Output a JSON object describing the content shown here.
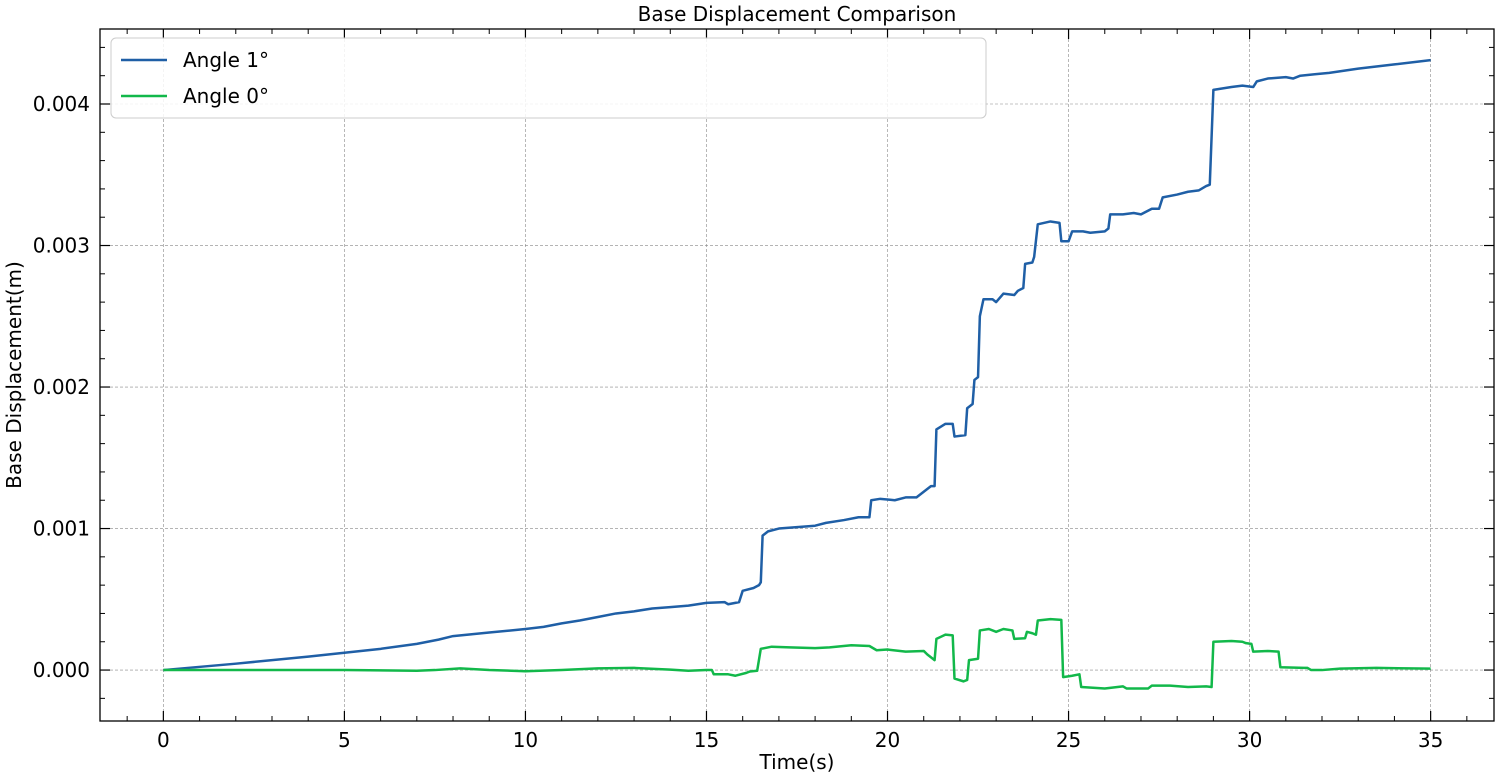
{
  "chart_data": {
    "type": "line",
    "title": "Base Displacement Comparison",
    "xlabel": "Time(s)",
    "ylabel": "Base Displacement(m)",
    "xlim": [
      -1.75,
      36.75
    ],
    "ylim": [
      -0.00036,
      0.00453
    ],
    "xticks": [
      0,
      5,
      10,
      15,
      20,
      25,
      30,
      35
    ],
    "xtick_labels": [
      "0",
      "5",
      "10",
      "15",
      "20",
      "25",
      "30",
      "35"
    ],
    "yticks": [
      0.0,
      0.001,
      0.002,
      0.003,
      0.004
    ],
    "ytick_labels": [
      "0.000",
      "0.001",
      "0.002",
      "0.003",
      "0.004"
    ],
    "grid": true,
    "legend_position": "top-left",
    "series": [
      {
        "name": "Angle 1°",
        "color": "#1f5fa6",
        "points": [
          [
            0,
            0.0
          ],
          [
            2,
            4.5e-05
          ],
          [
            4,
            9.5e-05
          ],
          [
            6,
            0.00015
          ],
          [
            7,
            0.000185
          ],
          [
            7.6,
            0.000215
          ],
          [
            8,
            0.00024
          ],
          [
            9,
            0.000265
          ],
          [
            10,
            0.00029
          ],
          [
            10.5,
            0.000305
          ],
          [
            11,
            0.00033
          ],
          [
            11.5,
            0.00035
          ],
          [
            12,
            0.000375
          ],
          [
            12.5,
            0.0004
          ],
          [
            13,
            0.000415
          ],
          [
            13.5,
            0.000435
          ],
          [
            14,
            0.000445
          ],
          [
            14.5,
            0.000455
          ],
          [
            15,
            0.000475
          ],
          [
            15.5,
            0.00048
          ],
          [
            15.6,
            0.000465
          ],
          [
            15.9,
            0.00048
          ],
          [
            16.0,
            0.00056
          ],
          [
            16.3,
            0.00058
          ],
          [
            16.45,
            0.0006
          ],
          [
            16.5,
            0.00062
          ],
          [
            16.55,
            0.00095
          ],
          [
            16.7,
            0.00098
          ],
          [
            17,
            0.001
          ],
          [
            17.5,
            0.00101
          ],
          [
            18,
            0.00102
          ],
          [
            18.3,
            0.00104
          ],
          [
            18.8,
            0.00106
          ],
          [
            19.2,
            0.00108
          ],
          [
            19.5,
            0.00108
          ],
          [
            19.55,
            0.0012
          ],
          [
            19.8,
            0.00121
          ],
          [
            20.2,
            0.0012
          ],
          [
            20.5,
            0.00122
          ],
          [
            20.8,
            0.00122
          ],
          [
            21.0,
            0.00126
          ],
          [
            21.2,
            0.0013
          ],
          [
            21.3,
            0.0013
          ],
          [
            21.35,
            0.0017
          ],
          [
            21.6,
            0.00174
          ],
          [
            21.8,
            0.00174
          ],
          [
            21.85,
            0.00165
          ],
          [
            22.15,
            0.00166
          ],
          [
            22.2,
            0.00185
          ],
          [
            22.35,
            0.00188
          ],
          [
            22.4,
            0.00205
          ],
          [
            22.5,
            0.00207
          ],
          [
            22.55,
            0.0025
          ],
          [
            22.65,
            0.00262
          ],
          [
            22.9,
            0.00262
          ],
          [
            23.0,
            0.0026
          ],
          [
            23.2,
            0.00266
          ],
          [
            23.5,
            0.00265
          ],
          [
            23.6,
            0.00268
          ],
          [
            23.75,
            0.0027
          ],
          [
            23.8,
            0.00287
          ],
          [
            24.0,
            0.00288
          ],
          [
            24.05,
            0.00292
          ],
          [
            24.15,
            0.00315
          ],
          [
            24.5,
            0.00317
          ],
          [
            24.75,
            0.00316
          ],
          [
            24.8,
            0.00303
          ],
          [
            25.0,
            0.00303
          ],
          [
            25.1,
            0.0031
          ],
          [
            25.4,
            0.0031
          ],
          [
            25.6,
            0.00309
          ],
          [
            26.0,
            0.0031
          ],
          [
            26.1,
            0.00312
          ],
          [
            26.15,
            0.00322
          ],
          [
            26.5,
            0.00322
          ],
          [
            26.8,
            0.00323
          ],
          [
            27.0,
            0.00322
          ],
          [
            27.3,
            0.00326
          ],
          [
            27.5,
            0.00326
          ],
          [
            27.6,
            0.00334
          ],
          [
            28.0,
            0.00336
          ],
          [
            28.3,
            0.00338
          ],
          [
            28.6,
            0.00339
          ],
          [
            28.8,
            0.00342
          ],
          [
            28.9,
            0.00343
          ],
          [
            29.0,
            0.0041
          ],
          [
            29.5,
            0.00412
          ],
          [
            29.8,
            0.00413
          ],
          [
            30.1,
            0.00412
          ],
          [
            30.2,
            0.00416
          ],
          [
            30.5,
            0.00418
          ],
          [
            31.0,
            0.00419
          ],
          [
            31.2,
            0.00418
          ],
          [
            31.4,
            0.0042
          ],
          [
            31.8,
            0.00421
          ],
          [
            32.2,
            0.00422
          ],
          [
            33.0,
            0.00425
          ],
          [
            34.0,
            0.00428
          ],
          [
            35.0,
            0.00431
          ]
        ]
      },
      {
        "name": "Angle 0°",
        "color": "#12b84a",
        "points": [
          [
            0,
            0.0
          ],
          [
            3,
            0.0
          ],
          [
            5,
            0.0
          ],
          [
            7,
            -5e-06
          ],
          [
            7.5,
            0.0
          ],
          [
            8.2,
            1.2e-05
          ],
          [
            9.0,
            0.0
          ],
          [
            10,
            -8e-06
          ],
          [
            11,
            0.0
          ],
          [
            12,
            1.2e-05
          ],
          [
            13,
            1.5e-05
          ],
          [
            14,
            3e-06
          ],
          [
            14.5,
            -5e-06
          ],
          [
            15,
            0.0
          ],
          [
            15.15,
            0.0
          ],
          [
            15.2,
            -3e-05
          ],
          [
            15.6,
            -3e-05
          ],
          [
            15.8,
            -4e-05
          ],
          [
            16.1,
            -2e-05
          ],
          [
            16.2,
            -1e-05
          ],
          [
            16.4,
            -5e-06
          ],
          [
            16.5,
            0.00015
          ],
          [
            16.8,
            0.000165
          ],
          [
            17.3,
            0.00016
          ],
          [
            18.0,
            0.000155
          ],
          [
            18.4,
            0.00016
          ],
          [
            19.0,
            0.000175
          ],
          [
            19.5,
            0.00017
          ],
          [
            19.7,
            0.00014
          ],
          [
            20.0,
            0.000145
          ],
          [
            20.5,
            0.00013
          ],
          [
            21.0,
            0.000135
          ],
          [
            21.1,
            0.00011
          ],
          [
            21.3,
            7e-05
          ],
          [
            21.35,
            0.00022
          ],
          [
            21.6,
            0.00025
          ],
          [
            21.8,
            0.000245
          ],
          [
            21.85,
            -6e-05
          ],
          [
            22.1,
            -8e-05
          ],
          [
            22.2,
            -7e-05
          ],
          [
            22.25,
            7e-05
          ],
          [
            22.5,
            8e-05
          ],
          [
            22.55,
            0.00028
          ],
          [
            22.8,
            0.00029
          ],
          [
            23.0,
            0.00027
          ],
          [
            23.2,
            0.00029
          ],
          [
            23.45,
            0.00028
          ],
          [
            23.5,
            0.00022
          ],
          [
            23.8,
            0.000225
          ],
          [
            23.85,
            0.00027
          ],
          [
            24.0,
            0.00026
          ],
          [
            24.1,
            0.00025
          ],
          [
            24.15,
            0.00035
          ],
          [
            24.5,
            0.00036
          ],
          [
            24.8,
            0.000355
          ],
          [
            24.85,
            -5e-05
          ],
          [
            25.1,
            -4e-05
          ],
          [
            25.3,
            -3e-05
          ],
          [
            25.35,
            -0.00012
          ],
          [
            26.0,
            -0.00013
          ],
          [
            26.5,
            -0.000115
          ],
          [
            26.6,
            -0.00013
          ],
          [
            27.2,
            -0.00013
          ],
          [
            27.3,
            -0.00011
          ],
          [
            27.8,
            -0.00011
          ],
          [
            28.3,
            -0.00012
          ],
          [
            28.8,
            -0.000115
          ],
          [
            28.95,
            -0.00012
          ],
          [
            29.0,
            0.0002
          ],
          [
            29.5,
            0.000205
          ],
          [
            29.8,
            0.0002
          ],
          [
            29.9,
            0.00019
          ],
          [
            30.05,
            0.000185
          ],
          [
            30.1,
            0.00013
          ],
          [
            30.5,
            0.000135
          ],
          [
            30.8,
            0.00013
          ],
          [
            30.85,
            2e-05
          ],
          [
            31.5,
            1.5e-05
          ],
          [
            31.6,
            1.5e-05
          ],
          [
            31.7,
            0.0
          ],
          [
            32.0,
            0.0
          ],
          [
            32.5,
            1e-05
          ],
          [
            33.5,
            1.5e-05
          ],
          [
            35.0,
            1e-05
          ]
        ]
      }
    ]
  }
}
